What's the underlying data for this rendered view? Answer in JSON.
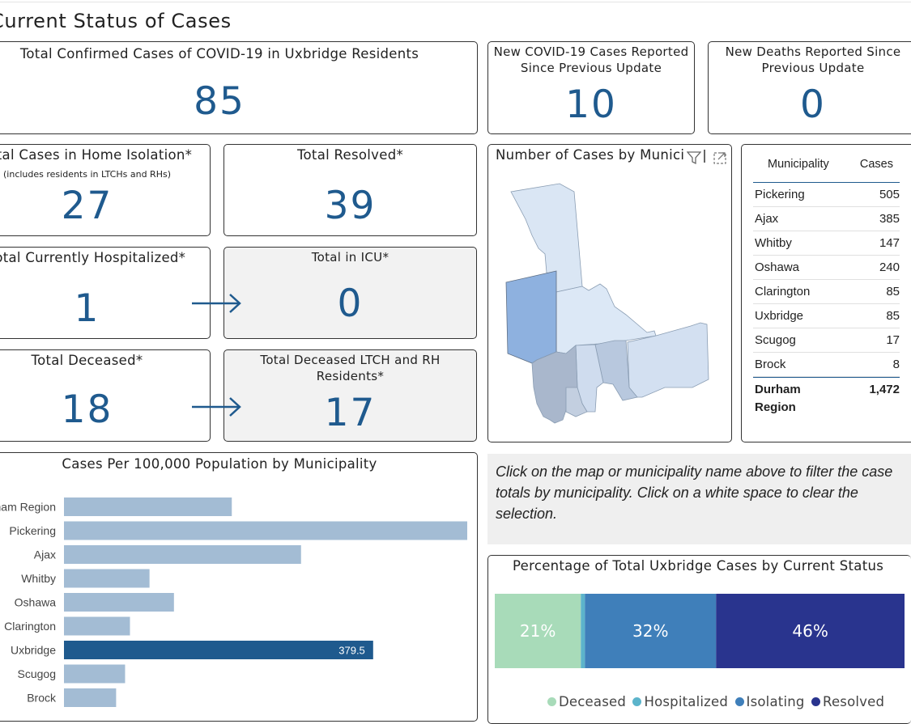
{
  "page": {
    "title": "Current Status of Cases"
  },
  "kpis": {
    "total_confirmed": {
      "title": "Total Confirmed Cases of COVID-19 in Uxbridge Residents",
      "value": "85"
    },
    "new_cases": {
      "title": "New COVID-19 Cases Reported Since Previous Update",
      "value": "10"
    },
    "new_deaths": {
      "title": "New Deaths Reported Since Previous Update",
      "value": "0"
    },
    "home_isolation": {
      "title": "Total Cases in Home Isolation*",
      "subtitle": "(includes residents in LTCHs and RHs)",
      "value": "27"
    },
    "resolved": {
      "title": "Total Resolved*",
      "value": "39"
    },
    "hospitalized": {
      "title": "Total Currently Hospitalized*",
      "value": "1"
    },
    "icu": {
      "title": "Total in ICU*",
      "value": "0"
    },
    "deceased": {
      "title": "Total Deceased*",
      "value": "18"
    },
    "deceased_ltch": {
      "title": "Total Deceased LTCH and RH Residents*",
      "value": "17"
    }
  },
  "map": {
    "title": "Number of Cases by Municipality",
    "filter_icon": "filter-icon",
    "focus_icon": "focus-mode-icon"
  },
  "municipality_table": {
    "headers": [
      "Municipality",
      "Cases"
    ],
    "rows": [
      [
        "Pickering",
        "505"
      ],
      [
        "Ajax",
        "385"
      ],
      [
        "Whitby",
        "147"
      ],
      [
        "Oshawa",
        "240"
      ],
      [
        "Clarington",
        "85"
      ],
      [
        "Uxbridge",
        "85"
      ],
      [
        "Scugog",
        "17"
      ],
      [
        "Brock",
        "8"
      ]
    ],
    "total": [
      "Durham Region",
      "1,472"
    ]
  },
  "hint": {
    "text": "Click on the map or municipality name above to filter the case totals by municipality. Click on a white space to clear the selection."
  },
  "colors": {
    "accent": "#1f5a8e",
    "bar": "#a3bcd4",
    "bar_selected": "#1f5a8e",
    "deceased": "#a8dbb9",
    "hospitalized": "#5cb4cb",
    "isolating": "#3f7fba",
    "resolved": "#29348e"
  },
  "chart_data": [
    {
      "type": "bar",
      "orientation": "horizontal",
      "title": "Cases Per 100,000 Population by Municipality",
      "categories": [
        "Durham Region",
        "Pickering",
        "Ajax",
        "Whitby",
        "Oshawa",
        "Clarington",
        "Uxbridge",
        "Scugog",
        "Brock"
      ],
      "values": [
        206,
        495,
        291,
        105,
        135,
        81,
        379.5,
        75,
        64
      ],
      "highlighted": "Uxbridge",
      "data_labels": {
        "Uxbridge": "379.5"
      },
      "xlim": [
        0,
        495
      ]
    },
    {
      "type": "bar",
      "orientation": "horizontal",
      "stacked": "100%",
      "title": "Percentage of Total Uxbridge Cases by Current Status",
      "series": [
        {
          "name": "Deceased",
          "value": 21,
          "label": "21%"
        },
        {
          "name": "Hospitalized",
          "value": 1,
          "label": ""
        },
        {
          "name": "Isolating",
          "value": 32,
          "label": "32%"
        },
        {
          "name": "Resolved",
          "value": 46,
          "label": "46%"
        }
      ],
      "legend": "bottom"
    }
  ]
}
